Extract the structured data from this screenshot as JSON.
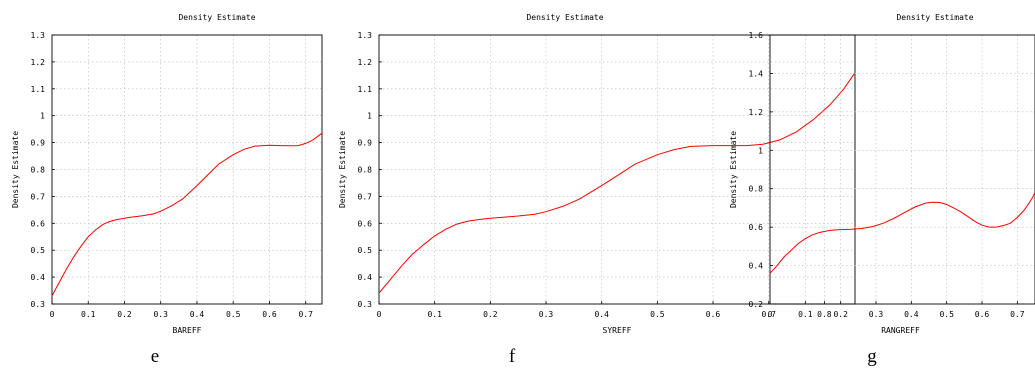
{
  "chart_data": [
    {
      "type": "line",
      "title": "Density Estimate",
      "xlabel": "BAREFF",
      "ylabel": "Density Estimate",
      "caption": "e",
      "xlim": [
        0,
        0.745
      ],
      "ylim": [
        0.3,
        1.3
      ],
      "xticks": [
        "0",
        "0.1",
        "0.2",
        "0.3",
        "0.4",
        "0.5",
        "0.6",
        "0.7"
      ],
      "yticks": [
        "0.3",
        "0.4",
        "0.5",
        "0.6",
        "0.7",
        "0.8",
        "0.9",
        "1",
        "1.1",
        "1.2",
        "1.3"
      ],
      "grid": true,
      "color": "#ff0000",
      "series": [
        {
          "x": [
            0,
            0.02,
            0.04,
            0.06,
            0.08,
            0.1,
            0.12,
            0.14,
            0.16,
            0.18,
            0.2,
            0.22,
            0.25,
            0.28,
            0.3,
            0.33,
            0.36,
            0.4,
            0.43,
            0.46,
            0.5,
            0.53,
            0.56,
            0.6,
            0.63,
            0.66,
            0.68,
            0.7,
            0.72,
            0.745
          ],
          "y": [
            0.33,
            0.38,
            0.43,
            0.475,
            0.515,
            0.55,
            0.575,
            0.595,
            0.607,
            0.614,
            0.619,
            0.623,
            0.628,
            0.635,
            0.645,
            0.665,
            0.69,
            0.74,
            0.78,
            0.82,
            0.855,
            0.875,
            0.887,
            0.89,
            0.889,
            0.888,
            0.889,
            0.897,
            0.91,
            0.935
          ]
        }
      ]
    },
    {
      "type": "line",
      "title": "Density Estimate",
      "xlabel": "SYREFF",
      "ylabel": "Density Estimate",
      "caption": "f",
      "xlim": [
        0,
        0.855
      ],
      "ylim": [
        0.3,
        1.3
      ],
      "xticks": [
        "0",
        "0.1",
        "0.2",
        "0.3",
        "0.4",
        "0.5",
        "0.6",
        "0.7",
        "0.8"
      ],
      "yticks": [
        "0.3",
        "0.4",
        "0.5",
        "0.6",
        "0.7",
        "0.8",
        "0.9",
        "1",
        "1.1",
        "1.2",
        "1.3"
      ],
      "grid": true,
      "color": "#ff0000",
      "series": [
        {
          "x": [
            0,
            0.02,
            0.04,
            0.06,
            0.08,
            0.1,
            0.12,
            0.14,
            0.16,
            0.18,
            0.2,
            0.22,
            0.25,
            0.28,
            0.3,
            0.33,
            0.36,
            0.4,
            0.43,
            0.46,
            0.5,
            0.53,
            0.56,
            0.6,
            0.63,
            0.66,
            0.69,
            0.72,
            0.75,
            0.78,
            0.81,
            0.835,
            0.855
          ],
          "y": [
            0.34,
            0.39,
            0.44,
            0.485,
            0.52,
            0.553,
            0.578,
            0.597,
            0.608,
            0.614,
            0.619,
            0.622,
            0.627,
            0.634,
            0.643,
            0.663,
            0.69,
            0.74,
            0.78,
            0.82,
            0.855,
            0.874,
            0.886,
            0.889,
            0.889,
            0.889,
            0.894,
            0.91,
            0.94,
            0.985,
            1.04,
            1.1,
            1.16
          ]
        }
      ]
    },
    {
      "type": "line",
      "title": "Density Estimate",
      "xlabel": "RANGREFF",
      "ylabel": "Density Estimate",
      "caption": "g",
      "xlim": [
        0,
        0.75
      ],
      "ylim": [
        0.2,
        1.6
      ],
      "xticks": [
        "0",
        "0.1",
        "0.2",
        "0.3",
        "0.4",
        "0.5",
        "0.6",
        "0.7"
      ],
      "yticks": [
        "0.2",
        "0.4",
        "0.6",
        "0.8",
        "1",
        "1.2",
        "1.4",
        "1.6"
      ],
      "grid": true,
      "color": "#ff0000",
      "series": [
        {
          "x": [
            0,
            0.02,
            0.04,
            0.06,
            0.08,
            0.1,
            0.12,
            0.14,
            0.16,
            0.18,
            0.2,
            0.23,
            0.26,
            0.29,
            0.32,
            0.35,
            0.38,
            0.41,
            0.44,
            0.46,
            0.48,
            0.5,
            0.52,
            0.54,
            0.56,
            0.58,
            0.6,
            0.62,
            0.64,
            0.66,
            0.68,
            0.7,
            0.72,
            0.74,
            0.75
          ],
          "y": [
            0.36,
            0.4,
            0.445,
            0.48,
            0.515,
            0.54,
            0.56,
            0.572,
            0.58,
            0.585,
            0.587,
            0.589,
            0.593,
            0.603,
            0.62,
            0.645,
            0.675,
            0.705,
            0.725,
            0.73,
            0.728,
            0.718,
            0.7,
            0.68,
            0.655,
            0.63,
            0.61,
            0.6,
            0.6,
            0.608,
            0.62,
            0.65,
            0.69,
            0.745,
            0.78
          ]
        }
      ]
    }
  ]
}
